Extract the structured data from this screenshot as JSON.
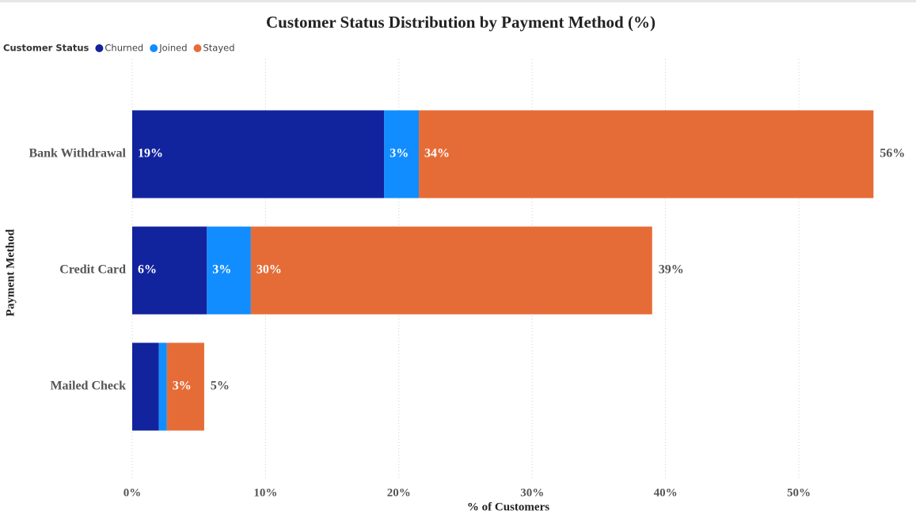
{
  "chart_data": {
    "type": "stacked-bar-horizontal",
    "title": "Customer Status Distribution by Payment Method (%)",
    "legend_title": "Customer Status",
    "legend_position": "top-left",
    "x_label": "% of Customers",
    "y_label": "Payment Method",
    "categories": [
      "Bank Withdrawal",
      "Credit Card",
      "Mailed Check"
    ],
    "series": [
      {
        "name": "Churned",
        "color": "#12239E",
        "values": [
          18.9,
          5.6,
          2.0
        ],
        "value_labels": [
          "19%",
          "6%",
          null
        ]
      },
      {
        "name": "Joined",
        "color": "#118DFF",
        "values": [
          2.6,
          3.3,
          0.6
        ],
        "value_labels": [
          "3%",
          "3%",
          null
        ]
      },
      {
        "name": "Stayed",
        "color": "#E66C37",
        "values": [
          34.1,
          30.1,
          2.8
        ],
        "value_labels": [
          "34%",
          "30%",
          "3%"
        ]
      }
    ],
    "totals": [
      55.6,
      39.0,
      5.4
    ],
    "total_labels": [
      "56%",
      "39%",
      "5%"
    ],
    "xlim": [
      0,
      58
    ],
    "xticks": [
      {
        "value": 0,
        "label": "0%"
      },
      {
        "value": 10,
        "label": "10%"
      },
      {
        "value": 20,
        "label": "20%"
      },
      {
        "value": 30,
        "label": "30%"
      },
      {
        "value": 40,
        "label": "40%"
      },
      {
        "value": 50,
        "label": "50%"
      }
    ],
    "grid": true
  }
}
